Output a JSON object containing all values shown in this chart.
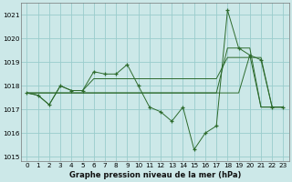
{
  "title": "Graphe pression niveau de la mer (hPa)",
  "background_color": "#cce8e8",
  "grid_color": "#99cccc",
  "line_color": "#2d6b2d",
  "marker_color": "#2d6b2d",
  "x_values": [
    0,
    1,
    2,
    3,
    4,
    5,
    6,
    7,
    8,
    9,
    10,
    11,
    12,
    13,
    14,
    15,
    16,
    17,
    18,
    19,
    20,
    21,
    22,
    23
  ],
  "y_main": [
    1017.7,
    1017.6,
    1017.2,
    1018.0,
    1017.8,
    1017.8,
    1018.6,
    1018.5,
    1018.5,
    1018.9,
    1018.0,
    1017.1,
    1016.9,
    1016.5,
    1017.1,
    1015.3,
    1016.0,
    1016.3,
    1021.2,
    1019.6,
    1019.3,
    1019.1,
    1017.1,
    1017.1
  ],
  "y_line2": [
    1017.7,
    1017.6,
    1017.2,
    1018.0,
    1017.8,
    1017.8,
    1018.3,
    1018.3,
    1018.3,
    1018.3,
    1018.3,
    1018.3,
    1018.3,
    1018.3,
    1018.3,
    1018.3,
    1018.3,
    1018.3,
    1019.2,
    1019.2,
    1019.2,
    1019.2,
    1017.1,
    1017.1
  ],
  "y_line3": [
    1017.7,
    1017.7,
    1017.7,
    1017.7,
    1017.7,
    1017.7,
    1017.7,
    1017.7,
    1017.7,
    1017.7,
    1017.7,
    1017.7,
    1017.7,
    1017.7,
    1017.7,
    1017.7,
    1017.7,
    1017.7,
    1019.6,
    1019.6,
    1019.6,
    1017.1,
    1017.1,
    1017.1
  ],
  "y_line4": [
    1017.7,
    1017.7,
    1017.7,
    1017.7,
    1017.7,
    1017.7,
    1017.7,
    1017.7,
    1017.7,
    1017.7,
    1017.7,
    1017.7,
    1017.7,
    1017.7,
    1017.7,
    1017.7,
    1017.7,
    1017.7,
    1017.7,
    1017.7,
    1019.3,
    1017.1,
    1017.1,
    1017.1
  ],
  "ylim": [
    1014.8,
    1021.5
  ],
  "yticks": [
    1015,
    1016,
    1017,
    1018,
    1019,
    1020,
    1021
  ],
  "xlim": [
    -0.5,
    23.5
  ],
  "xticks": [
    0,
    1,
    2,
    3,
    4,
    5,
    6,
    7,
    8,
    9,
    10,
    11,
    12,
    13,
    14,
    15,
    16,
    17,
    18,
    19,
    20,
    21,
    22,
    23
  ]
}
